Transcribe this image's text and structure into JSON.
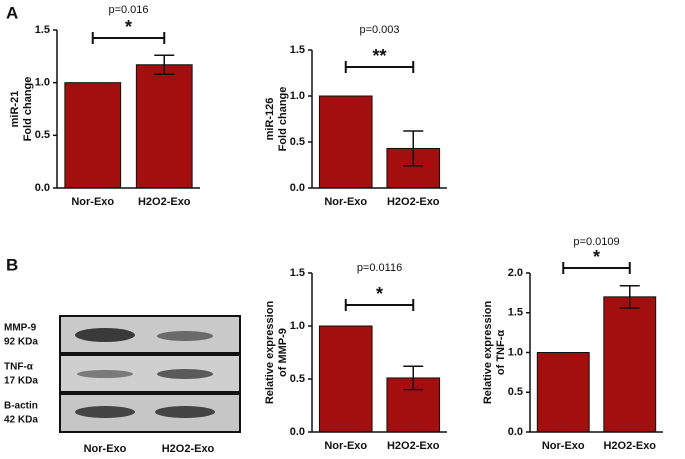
{
  "figure": {
    "panels": [
      "A",
      "B"
    ],
    "blot": {
      "rows": [
        [
          "MMP-9",
          "92 KDa"
        ],
        [
          "TNF-α",
          "17 KDa"
        ],
        [
          "B-actin",
          "42 KDa"
        ]
      ],
      "categories": [
        "Nor-Exo",
        "H2O2-Exo"
      ]
    }
  },
  "chart_data": [
    {
      "type": "bar",
      "ylabel": [
        "miR-21",
        "Fold change"
      ],
      "categories": [
        "Nor-Exo",
        "H2O2-Exo"
      ],
      "values": [
        1,
        1.17
      ],
      "errors": [
        null,
        0.09
      ],
      "color": "#a30f0f",
      "ylim": [
        0,
        1.5
      ],
      "yticks": [
        {
          "value": 0,
          "label": "0.0"
        },
        {
          "value": 0.5,
          "label": "0.5"
        },
        {
          "value": 1,
          "label": "1.0"
        },
        {
          "value": 1.5,
          "label": "1.5"
        }
      ],
      "annotation": "p=0.016",
      "significance": "*"
    },
    {
      "type": "bar",
      "ylabel": [
        "miR-126",
        "Fold change"
      ],
      "categories": [
        "Nor-Exo",
        "H2O2-Exo"
      ],
      "values": [
        1,
        0.43
      ],
      "errors": [
        null,
        0.19
      ],
      "color": "#a30f0f",
      "ylim": [
        0,
        1.5
      ],
      "yticks": [
        {
          "value": 0,
          "label": "0.0"
        },
        {
          "value": 0.5,
          "label": "0.5"
        },
        {
          "value": 1,
          "label": "1.0"
        },
        {
          "value": 1.5,
          "label": "1.5"
        }
      ],
      "annotation": "p=0.003",
      "significance": "**"
    },
    {
      "type": "bar",
      "ylabel": [
        "Relative expression",
        "of MMP-9"
      ],
      "categories": [
        "Nor-Exo",
        "H2O2-Exo"
      ],
      "values": [
        1,
        0.51
      ],
      "errors": [
        null,
        0.11
      ],
      "color": "#a30f0f",
      "ylim": [
        0,
        1.5
      ],
      "yticks": [
        {
          "value": 0,
          "label": "0.0"
        },
        {
          "value": 0.5,
          "label": "0.5"
        },
        {
          "value": 1,
          "label": "1.0"
        },
        {
          "value": 1.5,
          "label": "1.5"
        }
      ],
      "annotation": "p=0.0116",
      "significance": "*"
    },
    {
      "type": "bar",
      "ylabel": [
        "Relative expression",
        "of TNF-α"
      ],
      "categories": [
        "Nor-Exo",
        "H2O2-Exo"
      ],
      "values": [
        1,
        1.7
      ],
      "errors": [
        null,
        0.14
      ],
      "color": "#a30f0f",
      "ylim": [
        0,
        2
      ],
      "yticks": [
        {
          "value": 0,
          "label": "0.0"
        },
        {
          "value": 0.5,
          "label": "0.5"
        },
        {
          "value": 1,
          "label": "1.0"
        },
        {
          "value": 1.5,
          "label": "1.5"
        },
        {
          "value": 2,
          "label": "2.0"
        }
      ],
      "annotation": "p=0.0109",
      "significance": "*"
    }
  ]
}
